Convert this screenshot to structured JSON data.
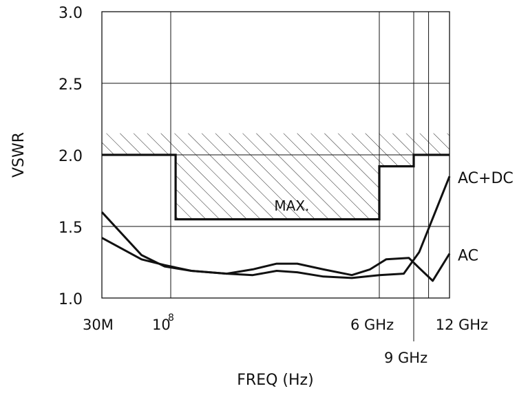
{
  "chart_data": {
    "type": "line",
    "title": "",
    "xlabel": "FREQ (Hz)",
    "ylabel": "VSWR",
    "ylim": [
      1.0,
      3.0
    ],
    "y_ticks": [
      "1.0",
      "1.5",
      "2.0",
      "2.5",
      "3.0"
    ],
    "x_scale": "log",
    "x_ticks": [
      {
        "freq_hz": 30000000,
        "label": "30M"
      },
      {
        "freq_hz": 100000000,
        "label": "10",
        "superscript": "8"
      },
      {
        "freq_hz": 6000000000,
        "label": "6 GHz"
      },
      {
        "freq_hz": 9000000000,
        "label": "9 GHz",
        "lower_row": true
      },
      {
        "freq_hz": 12000000000,
        "label": "12 GHz"
      }
    ],
    "grid": true,
    "annotations": [
      {
        "text": "MAX.",
        "at_hz": 1000000000,
        "at_vswr": 1.65
      }
    ],
    "series": [
      {
        "name": "MAX.",
        "kind": "limit",
        "hatched": true,
        "x": [
          30000000,
          110000000,
          110000000,
          6000000000,
          6000000000,
          9000000000,
          9000000000,
          18000000000
        ],
        "y": [
          2.0,
          2.0,
          1.55,
          1.55,
          1.92,
          1.92,
          2.0,
          2.0
        ]
      },
      {
        "name": "AC+DC",
        "x": [
          30000000,
          60000000,
          90000000,
          150000000,
          300000000,
          500000000,
          800000000,
          1200000000,
          2000000000,
          3500000000,
          6000000000,
          8000000000,
          10000000000,
          18000000000
        ],
        "y": [
          1.6,
          1.3,
          1.22,
          1.19,
          1.17,
          1.16,
          1.19,
          1.18,
          1.15,
          1.14,
          1.16,
          1.17,
          1.32,
          1.85
        ]
      },
      {
        "name": "AC",
        "x": [
          30000000,
          60000000,
          90000000,
          150000000,
          300000000,
          500000000,
          800000000,
          1200000000,
          2000000000,
          3500000000,
          5000000000,
          6500000000,
          8500000000,
          10000000000,
          13000000000,
          18000000000
        ],
        "y": [
          1.42,
          1.27,
          1.23,
          1.19,
          1.17,
          1.2,
          1.24,
          1.24,
          1.2,
          1.16,
          1.2,
          1.27,
          1.28,
          1.21,
          1.12,
          1.31
        ]
      }
    ]
  }
}
